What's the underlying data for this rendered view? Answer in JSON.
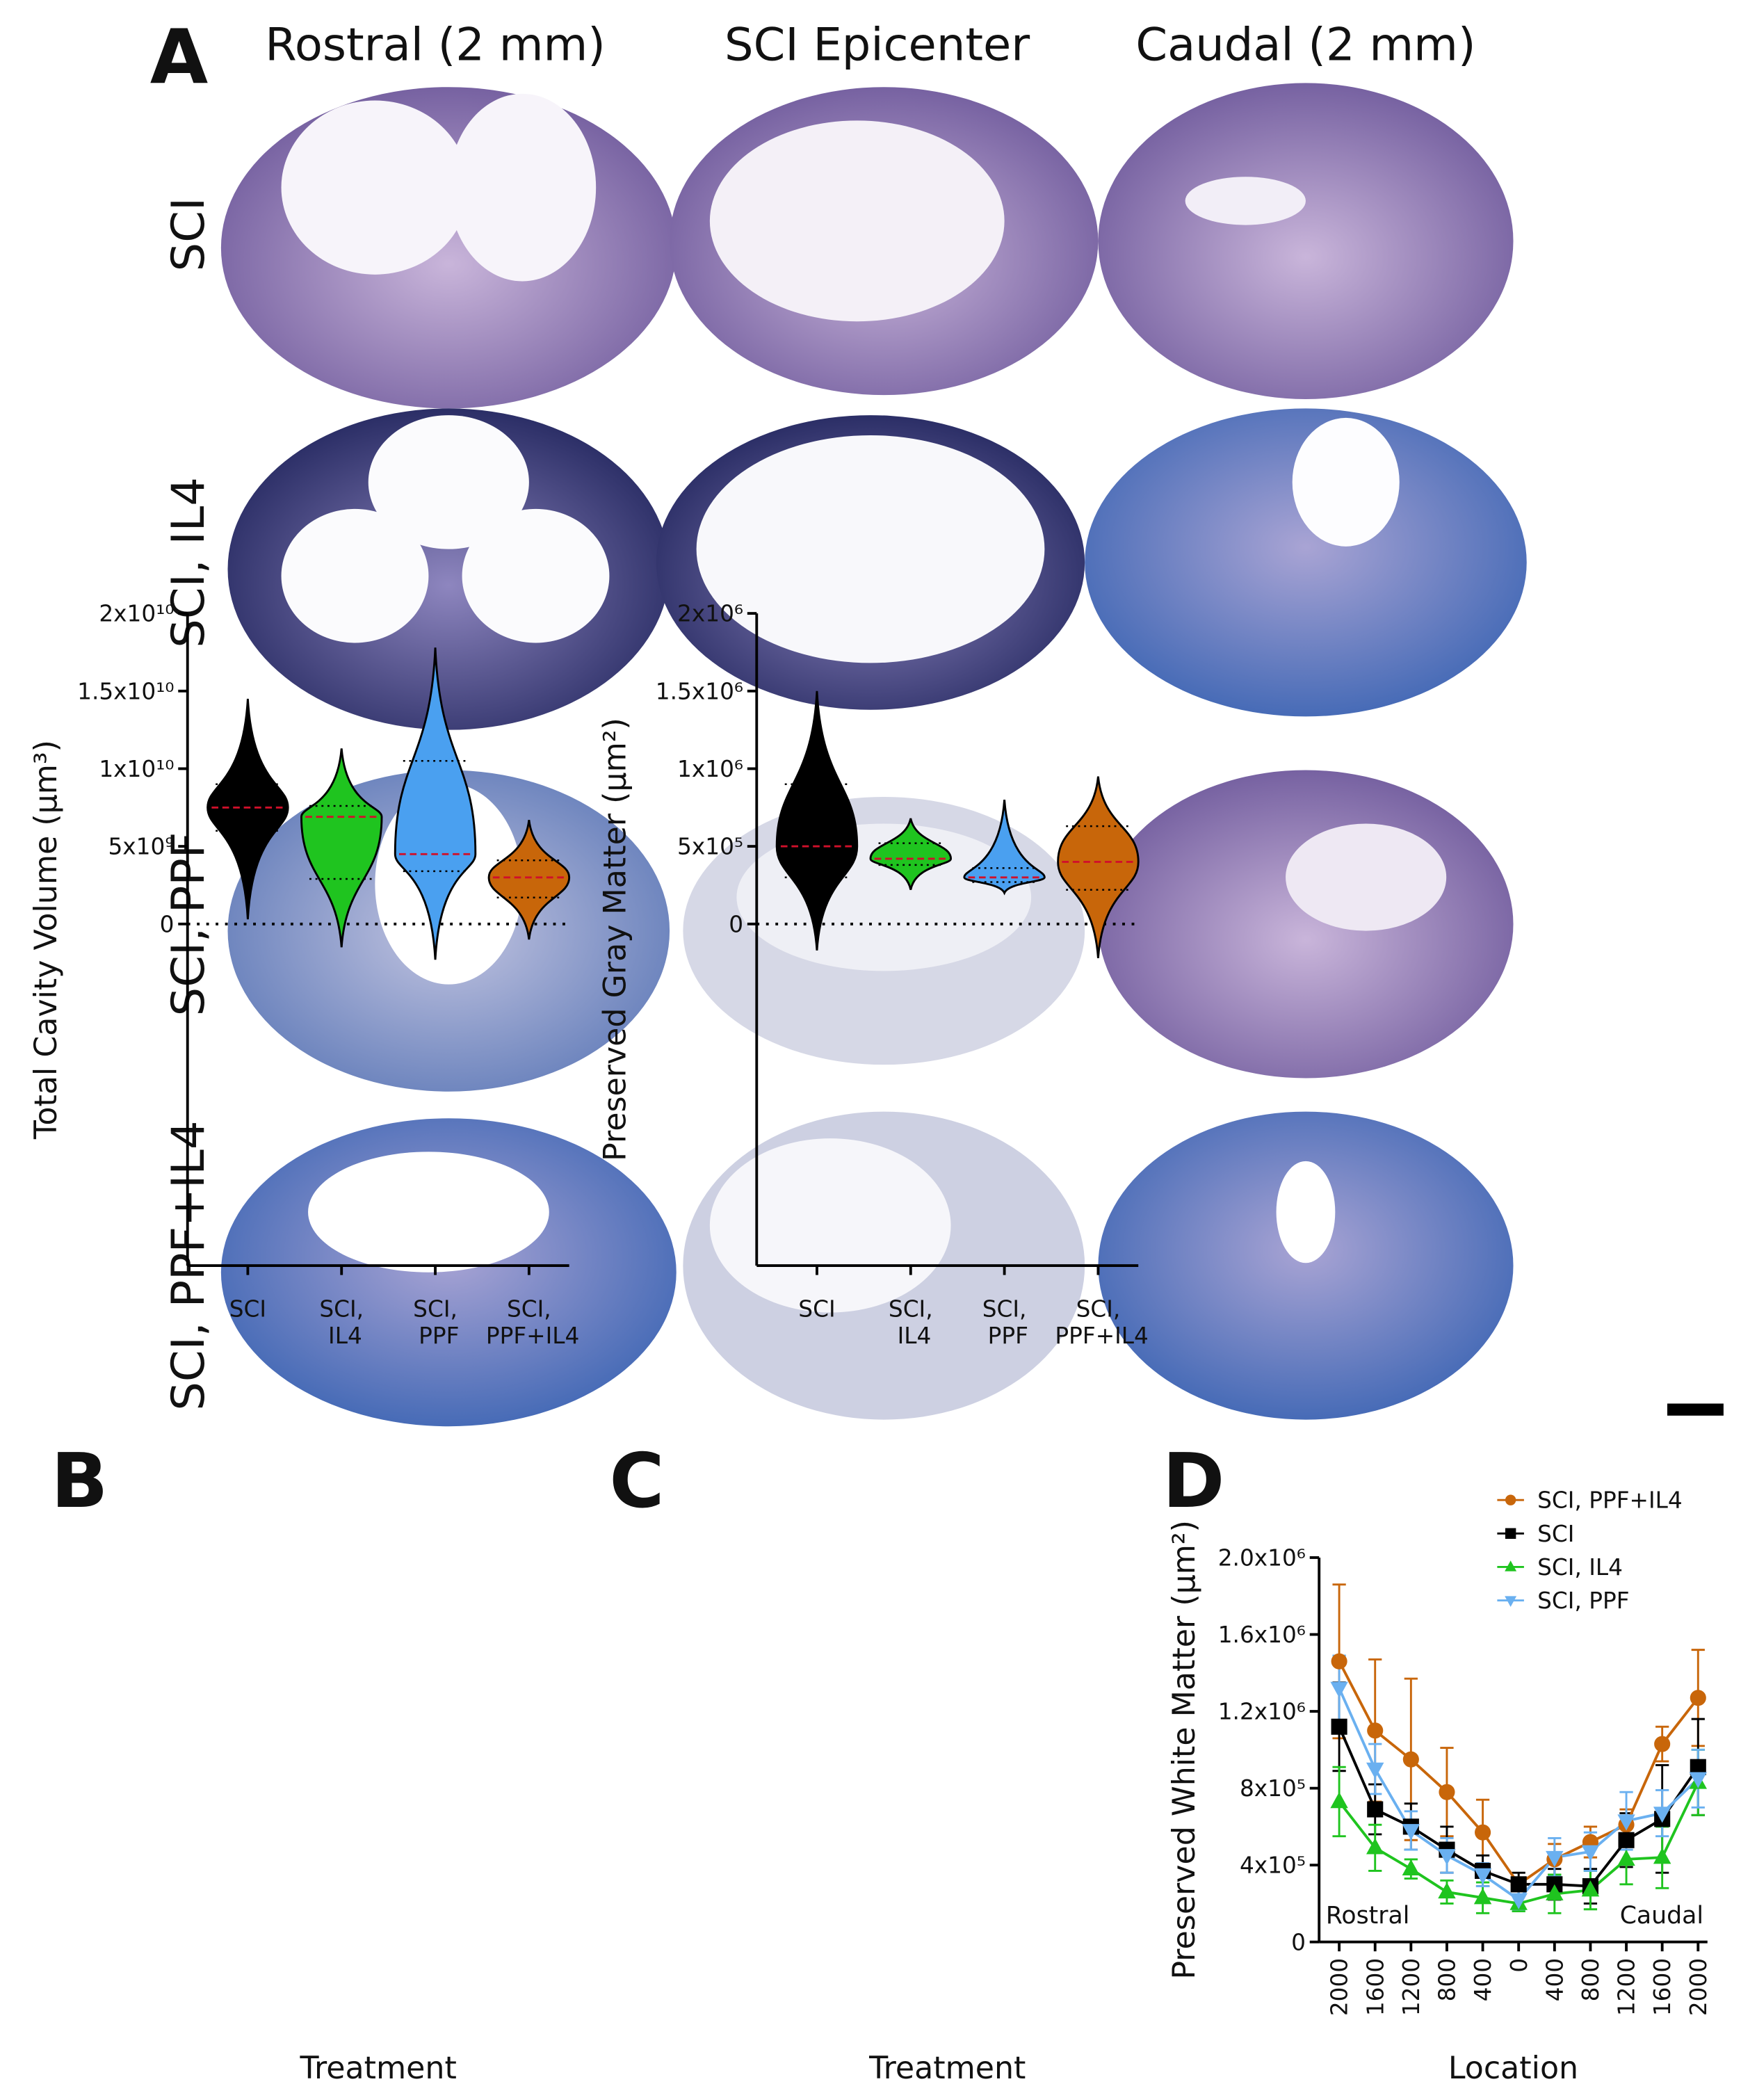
{
  "panel_a": {
    "letter": "A",
    "columns": [
      "Rostral (2 mm)",
      "SCI Epicenter",
      "Caudal (2 mm)"
    ],
    "rows": [
      "SCI",
      "SCI, IL4",
      "SCI, PPF",
      "SCI, PPF+IL4"
    ]
  },
  "chart_data": [
    {
      "type": "violin",
      "letter": "B",
      "ylabel": "Total Cavity Volume (µm³)",
      "xlabel": "Treatment",
      "categories": [
        "SCI",
        "SCI, IL4",
        "SCI, PPF",
        "SCI, PPF+IL4"
      ],
      "colors": [
        "#000000",
        "#1fc41f",
        "#4aa0f0",
        "#c8660a"
      ],
      "min": [
        300000000,
        -1500000000,
        -2300000000,
        -1000000000
      ],
      "q1": [
        6000000000,
        2900000000,
        3400000000,
        1700000000
      ],
      "median": [
        7500000000,
        6900000000,
        4500000000,
        3000000000
      ],
      "q3": [
        9000000000,
        7600000000,
        10500000000,
        4100000000
      ],
      "max": [
        14500000000,
        11300000000,
        17800000000,
        6700000000
      ],
      "ylim": [
        -22000000000,
        20000000000
      ],
      "yticks": [
        0,
        {
          "value": 5000000000,
          "label": "5x10⁹"
        },
        {
          "value": 10000000000,
          "label": "1x10¹⁰"
        },
        {
          "value": 15000000000,
          "label": "1.5x10¹⁰"
        },
        {
          "value": 20000000000,
          "label": "2x10¹⁰"
        }
      ],
      "zero_line": true
    },
    {
      "type": "violin",
      "letter": "C",
      "ylabel": "Preserved Gray Matter (µm²)",
      "xlabel": "Treatment",
      "categories": [
        "SCI",
        "SCI, IL4",
        "SCI, PPF",
        "SCI, PPF+IL4"
      ],
      "colors": [
        "#000000",
        "#1fc41f",
        "#4aa0f0",
        "#c8660a"
      ],
      "min": [
        -170000,
        220000,
        200000,
        -220000
      ],
      "q1": [
        300000,
        380000,
        270000,
        220000
      ],
      "median": [
        500000,
        420000,
        300000,
        400000
      ],
      "q3": [
        900000,
        520000,
        360000,
        630000
      ],
      "max": [
        1500000,
        680000,
        800000,
        950000
      ],
      "ylim": [
        -2200000,
        2000000
      ],
      "yticks": [
        0,
        {
          "value": 500000,
          "label": "5x10⁵"
        },
        {
          "value": 1000000,
          "label": "1x10⁶"
        },
        {
          "value": 1500000,
          "label": "1.5x10⁶"
        },
        {
          "value": 2000000,
          "label": "2x10⁶"
        }
      ],
      "zero_line": true
    },
    {
      "type": "line",
      "letter": "D",
      "ylabel": "Preserved White Matter (µm²)",
      "xlabel": "Location",
      "categories": [
        "2000",
        "1600",
        "1200",
        "800",
        "400",
        "0",
        "400",
        "800",
        "1200",
        "1600",
        "2000"
      ],
      "annotations": [
        "Rostral",
        "Caudal"
      ],
      "ylim": [
        0,
        2000000
      ],
      "yticks": [
        0,
        {
          "value": 400000,
          "label": "4x10⁵"
        },
        {
          "value": 800000,
          "label": "8x10⁵"
        },
        {
          "value": 1200000,
          "label": "1.2x10⁶"
        },
        {
          "value": 1600000,
          "label": "1.6x10⁶"
        },
        {
          "value": 2000000,
          "label": "2.0x10⁶"
        }
      ],
      "series": [
        {
          "name": "SCI, PPF+IL4",
          "color": "#c8660a",
          "marker": "circle",
          "values": [
            1460000,
            1100000,
            950000,
            780000,
            570000,
            300000,
            430000,
            520000,
            610000,
            1030000,
            1270000
          ],
          "errors": [
            400000,
            370000,
            420000,
            230000,
            170000,
            30000,
            80000,
            80000,
            80000,
            90000,
            250000
          ]
        },
        {
          "name": "SCI",
          "color": "#000000",
          "marker": "square",
          "values": [
            1120000,
            690000,
            600000,
            480000,
            370000,
            300000,
            300000,
            290000,
            530000,
            640000,
            910000
          ],
          "errors": [
            230000,
            130000,
            120000,
            120000,
            80000,
            60000,
            80000,
            90000,
            140000,
            280000,
            250000
          ]
        },
        {
          "name": "SCI, IL4",
          "color": "#1fc41f",
          "marker": "triangle",
          "values": [
            730000,
            490000,
            380000,
            260000,
            230000,
            200000,
            250000,
            270000,
            430000,
            440000,
            830000
          ],
          "errors": [
            180000,
            120000,
            50000,
            60000,
            80000,
            40000,
            100000,
            100000,
            130000,
            160000,
            170000
          ]
        },
        {
          "name": "SCI, PPF",
          "color": "#6ab0f0",
          "marker": "triangle-down",
          "values": [
            1320000,
            900000,
            580000,
            450000,
            350000,
            220000,
            440000,
            470000,
            630000,
            670000,
            850000
          ],
          "errors": [
            170000,
            130000,
            100000,
            90000,
            60000,
            50000,
            100000,
            100000,
            150000,
            120000,
            150000
          ]
        }
      ]
    }
  ]
}
